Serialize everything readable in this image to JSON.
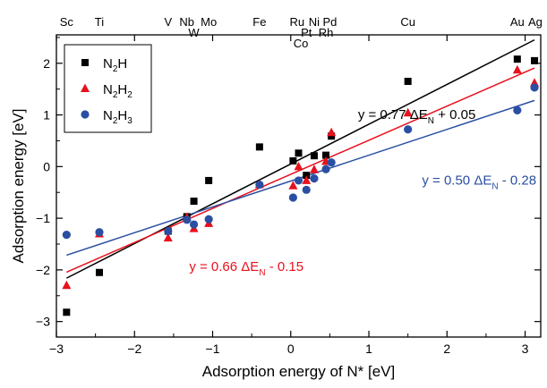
{
  "chart_data": {
    "type": "scatter",
    "xlabel": "Adsorption energy of N*  [eV]",
    "ylabel": "Adsorption energy  [eV]",
    "xlim": [
      -3,
      3.2
    ],
    "ylim": [
      -3.3,
      2.55
    ],
    "x_ticks": [
      -3,
      -2,
      -1,
      0,
      1,
      2,
      3
    ],
    "y_ticks": [
      -3,
      -2,
      -1,
      0,
      1,
      2
    ],
    "grid": false,
    "legend_position": "top-left",
    "metal_labels": [
      {
        "text": "Sc",
        "x": -2.87,
        "row": 0
      },
      {
        "text": "Ti",
        "x": -2.45,
        "row": 0
      },
      {
        "text": "V",
        "x": -1.57,
        "row": 0
      },
      {
        "text": "Nb",
        "x": -1.33,
        "row": 0
      },
      {
        "text": "W",
        "x": -1.24,
        "row": 1
      },
      {
        "text": "Mo",
        "x": -1.05,
        "row": 0
      },
      {
        "text": "Fe",
        "x": -0.4,
        "row": 0
      },
      {
        "text": "Ru",
        "x": 0.08,
        "row": 0
      },
      {
        "text": "Pt",
        "x": 0.2,
        "row": 1
      },
      {
        "text": "Co",
        "x": 0.13,
        "row": 2
      },
      {
        "text": "Ni",
        "x": 0.3,
        "row": 0
      },
      {
        "text": "Pd",
        "x": 0.5,
        "row": 0
      },
      {
        "text": "Rh",
        "x": 0.45,
        "row": 1
      },
      {
        "text": "Cu",
        "x": 1.5,
        "row": 0
      },
      {
        "text": "Au",
        "x": 2.9,
        "row": 0
      },
      {
        "text": "Ag",
        "x": 3.13,
        "row": 0
      }
    ],
    "series": [
      {
        "name": "N2H",
        "name_base": "N",
        "name_sub1": "2",
        "name_mid": "H",
        "name_sub2": "",
        "color": "#000000",
        "marker": "square",
        "points": [
          {
            "x": -2.87,
            "y": -2.82
          },
          {
            "x": -2.45,
            "y": -2.05
          },
          {
            "x": -1.57,
            "y": -1.25
          },
          {
            "x": -1.33,
            "y": -0.97
          },
          {
            "x": -1.24,
            "y": -0.67
          },
          {
            "x": -1.05,
            "y": -0.27
          },
          {
            "x": -0.4,
            "y": 0.38
          },
          {
            "x": 0.03,
            "y": 0.11
          },
          {
            "x": 0.1,
            "y": 0.26
          },
          {
            "x": 0.2,
            "y": -0.17
          },
          {
            "x": 0.3,
            "y": 0.21
          },
          {
            "x": 0.45,
            "y": 0.22
          },
          {
            "x": 0.52,
            "y": 0.59
          },
          {
            "x": 1.5,
            "y": 1.65
          },
          {
            "x": 2.9,
            "y": 2.08
          },
          {
            "x": 3.12,
            "y": 2.05
          }
        ]
      },
      {
        "name": "N2H2",
        "name_base": "N",
        "name_sub1": "2",
        "name_mid": "H",
        "name_sub2": "2",
        "color": "#e8101c",
        "marker": "triangle",
        "points": [
          {
            "x": -2.87,
            "y": -2.3
          },
          {
            "x": -2.45,
            "y": -1.3
          },
          {
            "x": -1.57,
            "y": -1.38
          },
          {
            "x": -1.33,
            "y": -0.98
          },
          {
            "x": -1.24,
            "y": -1.2
          },
          {
            "x": -1.05,
            "y": -1.1
          },
          {
            "x": -0.4,
            "y": -0.35
          },
          {
            "x": 0.03,
            "y": -0.37
          },
          {
            "x": 0.1,
            "y": 0.0
          },
          {
            "x": 0.2,
            "y": -0.27
          },
          {
            "x": 0.3,
            "y": -0.06
          },
          {
            "x": 0.45,
            "y": 0.1
          },
          {
            "x": 0.52,
            "y": 0.66
          },
          {
            "x": 1.5,
            "y": 1.04
          },
          {
            "x": 2.9,
            "y": 1.87
          },
          {
            "x": 3.12,
            "y": 1.62
          }
        ]
      },
      {
        "name": "N2H3",
        "name_base": "N",
        "name_sub1": "2",
        "name_mid": "H",
        "name_sub2": "3",
        "color": "#2a4fa2",
        "marker": "circle",
        "points": [
          {
            "x": -2.87,
            "y": -1.32
          },
          {
            "x": -2.45,
            "y": -1.27
          },
          {
            "x": -1.57,
            "y": -1.25
          },
          {
            "x": -1.33,
            "y": -1.03
          },
          {
            "x": -1.24,
            "y": -1.12
          },
          {
            "x": -1.05,
            "y": -1.02
          },
          {
            "x": -0.4,
            "y": -0.35
          },
          {
            "x": 0.03,
            "y": -0.6
          },
          {
            "x": 0.1,
            "y": -0.27
          },
          {
            "x": 0.2,
            "y": -0.45
          },
          {
            "x": 0.3,
            "y": -0.23
          },
          {
            "x": 0.45,
            "y": -0.05
          },
          {
            "x": 0.52,
            "y": 0.08
          },
          {
            "x": 1.5,
            "y": 0.72
          },
          {
            "x": 2.9,
            "y": 1.09
          },
          {
            "x": 3.12,
            "y": 1.53
          }
        ]
      }
    ],
    "fits": [
      {
        "series": "N2H",
        "slope": 0.77,
        "intercept": 0.05,
        "x_range": [
          -2.87,
          3.12
        ],
        "color": "#000000",
        "eq_prefix": "y = 0.77 ΔE",
        "eq_sub": "N",
        "eq_suffix": " + 0.05",
        "label_x": 0.86,
        "label_y": 0.92
      },
      {
        "series": "N2H2",
        "slope": 0.66,
        "intercept": -0.15,
        "x_range": [
          -2.87,
          3.12
        ],
        "color": "#e8101c",
        "eq_prefix": "y  = 0.66 ΔE",
        "eq_sub": "N",
        "eq_suffix": " - 0.15",
        "label_x": -1.3,
        "label_y": -2.02
      },
      {
        "series": "N2H3",
        "slope": 0.5,
        "intercept": -0.28,
        "x_range": [
          -2.87,
          3.12
        ],
        "color": "#2a4fa2",
        "eq_prefix": "y  = 0.50 ΔE",
        "eq_sub": "N",
        "eq_suffix": " - 0.28",
        "label_x": 1.68,
        "label_y": -0.35
      }
    ]
  }
}
